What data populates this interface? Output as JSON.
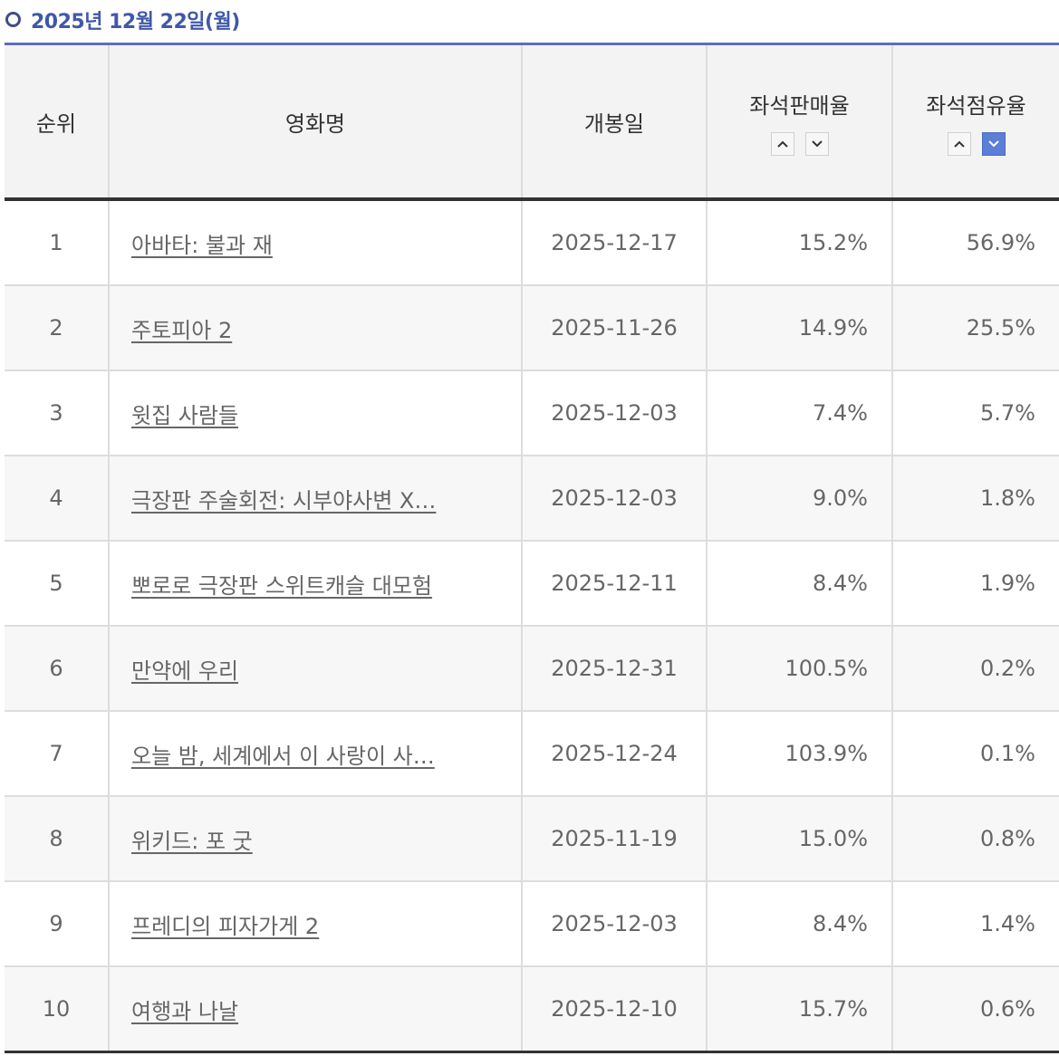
{
  "date_heading": "2025년 12월 22일(월)",
  "headers": {
    "rank": "순위",
    "title": "영화명",
    "release": "개봉일",
    "seat_sales_rate": "좌석판매율",
    "seat_share": "좌석점유율"
  },
  "sort_icons": [
    "chevron-up-icon",
    "chevron-down-icon"
  ],
  "active_sort": {
    "column": "seat_share",
    "direction": "down"
  },
  "colors": {
    "accent": "#3f58a8",
    "active_sort": "#5d7ed6"
  },
  "rows": [
    {
      "rank": "1",
      "title": "아바타: 불과 재",
      "release": "2025-12-17",
      "sales": "15.2%",
      "share": "56.9%"
    },
    {
      "rank": "2",
      "title": "주토피아 2",
      "release": "2025-11-26",
      "sales": "14.9%",
      "share": "25.5%"
    },
    {
      "rank": "3",
      "title": "윗집 사람들",
      "release": "2025-12-03",
      "sales": "7.4%",
      "share": "5.7%"
    },
    {
      "rank": "4",
      "title": "극장판 주술회전: 시부야사변 X…",
      "release": "2025-12-03",
      "sales": "9.0%",
      "share": "1.8%"
    },
    {
      "rank": "5",
      "title": "뽀로로 극장판 스위트캐슬 대모험",
      "release": "2025-12-11",
      "sales": "8.4%",
      "share": "1.9%"
    },
    {
      "rank": "6",
      "title": "만약에 우리",
      "release": "2025-12-31",
      "sales": "100.5%",
      "share": "0.2%"
    },
    {
      "rank": "7",
      "title": "오늘 밤, 세계에서 이 사랑이 사…",
      "release": "2025-12-24",
      "sales": "103.9%",
      "share": "0.1%"
    },
    {
      "rank": "8",
      "title": "위키드: 포 굿",
      "release": "2025-11-19",
      "sales": "15.0%",
      "share": "0.8%"
    },
    {
      "rank": "9",
      "title": "프레디의 피자가게 2",
      "release": "2025-12-03",
      "sales": "8.4%",
      "share": "1.4%"
    },
    {
      "rank": "10",
      "title": "여행과 나날",
      "release": "2025-12-10",
      "sales": "15.7%",
      "share": "0.6%"
    }
  ]
}
